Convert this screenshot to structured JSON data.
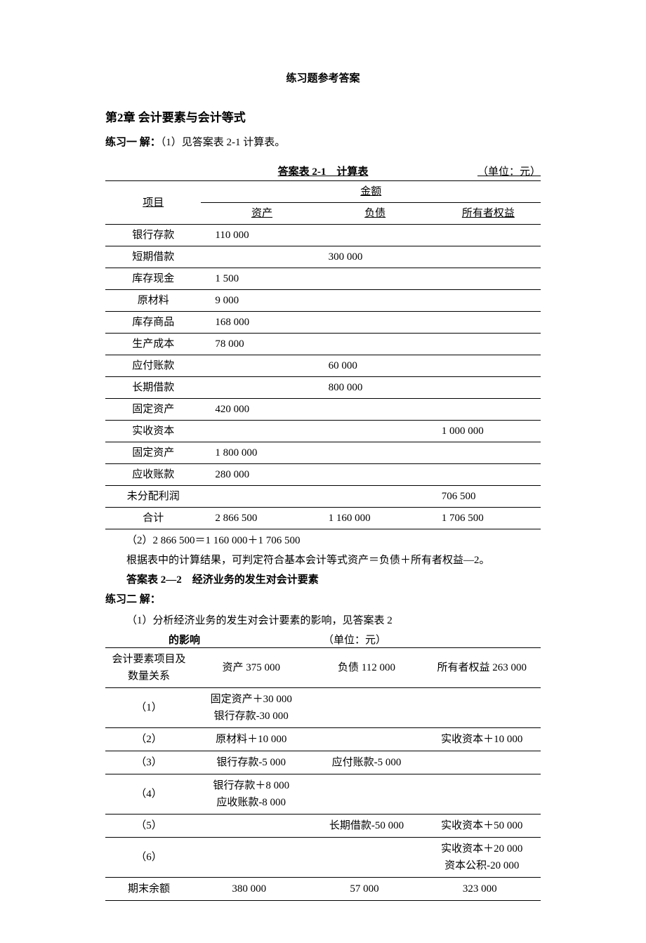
{
  "page": {
    "title": "练习题参考答案",
    "chapter": "第2章 会计要素与会计等式",
    "ex1_prefix": "练习一 解：",
    "ex1_text": "（1）见答案表 2-1 计算表。",
    "table1_caption_center": "答案表 2-1 计算表",
    "table1_caption_right": "（单位：元）",
    "col_item": "项目",
    "col_amount": "金额",
    "col_asset": "资产",
    "col_liab": "负债",
    "col_equity": "所有者权益",
    "equation": "（2）2 866 500＝1 160 000＋1 706 500",
    "conclusion": "根据表中的计算结果，可判定符合基本会计等式资产＝负债＋所有者权益—2。",
    "table2_title": "答案表 2—2 经济业务的发生对会计要素",
    "ex2_prefix": "练习二 解：",
    "ex2_text": "（1）分析经济业务的发生对会计要素的影响，见答案表 2",
    "table2_cap_left": "的影响",
    "table2_cap_right": "（单位：元）",
    "t2_hdr1": "会计要素项目及数量关系",
    "t2_hdr2": "资产 375 000",
    "t2_hdr3": "负债 112 000",
    "t2_hdr4": "所有者权益 263 000"
  },
  "table1": {
    "rows": [
      {
        "item": "银行存款",
        "asset": "110 000",
        "liab": "",
        "eq": ""
      },
      {
        "item": "短期借款",
        "asset": "",
        "liab": "300 000",
        "eq": ""
      },
      {
        "item": "库存现金",
        "asset": "1 500",
        "liab": "",
        "eq": ""
      },
      {
        "item": "原材料",
        "asset": "9 000",
        "liab": "",
        "eq": ""
      },
      {
        "item": "库存商品",
        "asset": "168 000",
        "liab": "",
        "eq": ""
      },
      {
        "item": "生产成本",
        "asset": "78 000",
        "liab": "",
        "eq": ""
      },
      {
        "item": "应付账款",
        "asset": "",
        "liab": "60 000",
        "eq": ""
      },
      {
        "item": "长期借款",
        "asset": "",
        "liab": "800 000",
        "eq": ""
      },
      {
        "item": "固定资产",
        "asset": "420 000",
        "liab": "",
        "eq": ""
      },
      {
        "item": "实收资本",
        "asset": "",
        "liab": "",
        "eq": "1 000 000"
      },
      {
        "item": "固定资产",
        "asset": "1 800 000",
        "liab": "",
        "eq": ""
      },
      {
        "item": "应收账款",
        "asset": "280 000",
        "liab": "",
        "eq": ""
      },
      {
        "item": "未分配利润",
        "asset": "",
        "liab": "",
        "eq": "706 500"
      },
      {
        "item": "合计",
        "asset": "2 866 500",
        "liab": "1 160 000",
        "eq": "1 706 500"
      }
    ]
  },
  "table2": {
    "rows": [
      {
        "n": "（1）",
        "a": "固定资产＋30 000<br>银行存款-30 000",
        "l": "",
        "e": ""
      },
      {
        "n": "（2）",
        "a": "原材料＋10 000",
        "l": "",
        "e": "实收资本＋10 000"
      },
      {
        "n": "（3）",
        "a": "银行存款-5 000",
        "l": "应付账款-5 000",
        "e": ""
      },
      {
        "n": "（4）",
        "a": "银行存款＋8 000<br>应收账款-8 000",
        "l": "",
        "e": ""
      },
      {
        "n": "（5）",
        "a": "",
        "l": "长期借款-50 000",
        "e": "实收资本＋50 000"
      },
      {
        "n": "（6）",
        "a": "",
        "l": "",
        "e": "实收资本＋20 000<br>资本公积-20 000"
      }
    ],
    "last": {
      "n": "期末余额",
      "a": "380 000",
      "l": "57 000",
      "e": "323 000"
    }
  }
}
